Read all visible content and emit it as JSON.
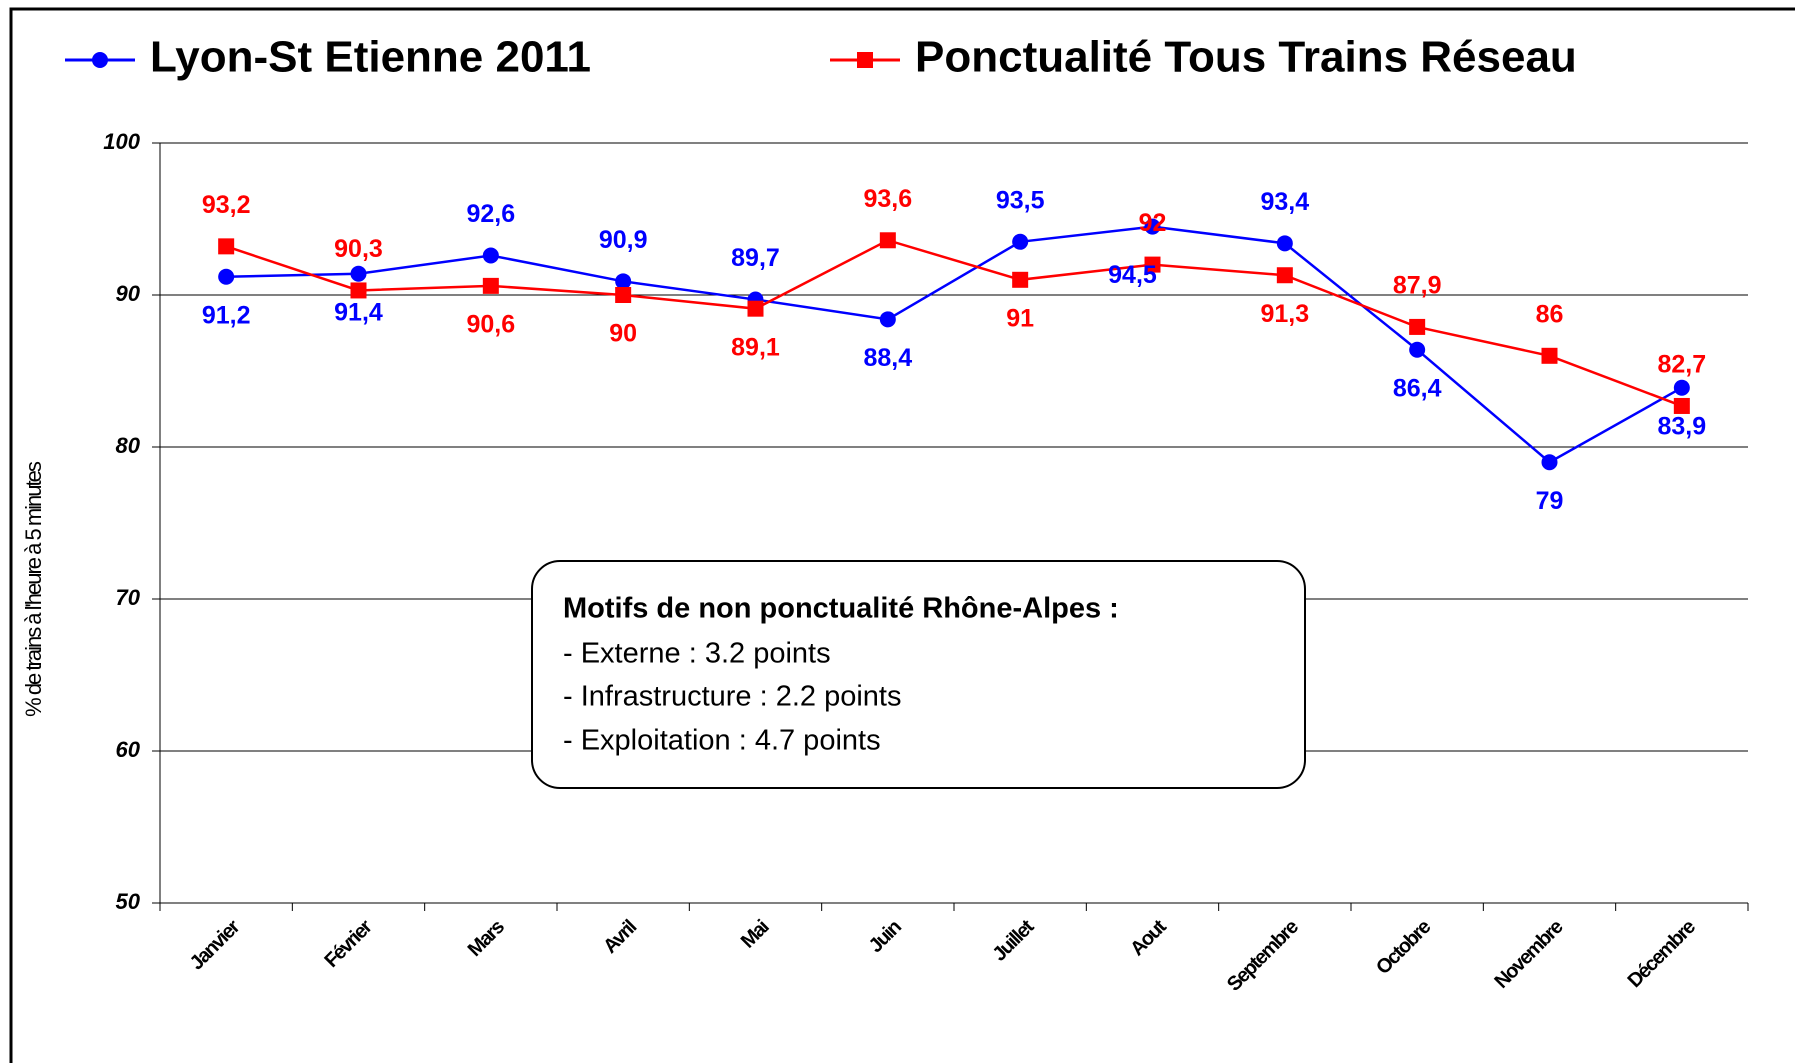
{
  "chart_data": {
    "type": "line",
    "y_label": "% de trains à l'heure à 5 minutes",
    "categories": [
      "Janvier",
      "Février",
      "Mars",
      "Avril",
      "Mai",
      "Juin",
      "Juillet",
      "Aout",
      "Septembre",
      "Octobre",
      "Novembre",
      "Décembre"
    ],
    "series": [
      {
        "name": "Lyon-St Etienne 2011",
        "color": "#0000ff",
        "marker": "circle",
        "values": [
          91.2,
          91.4,
          92.6,
          90.9,
          89.7,
          88.4,
          93.5,
          94.5,
          93.4,
          86.4,
          79,
          83.9
        ],
        "value_labels": [
          "91,2",
          "91,4",
          "92,6",
          "90,9",
          "89,7",
          "88,4",
          "93,5",
          "94,5",
          "93,4",
          "86,4",
          "79",
          "83,9"
        ]
      },
      {
        "name": "Ponctualité Tous Trains Réseau",
        "color": "#ff0000",
        "marker": "square",
        "values": [
          93.2,
          90.3,
          90.6,
          90,
          89.1,
          93.6,
          91,
          92,
          91.3,
          87.9,
          86,
          82.7
        ],
        "value_labels": [
          "93,2",
          "90,3",
          "90,6",
          "90",
          "89,1",
          "93,6",
          "91",
          "92",
          "91,3",
          "87,9",
          "86",
          "82,7"
        ]
      }
    ],
    "ylim": [
      50,
      100
    ],
    "yticks": [
      50,
      60,
      70,
      80,
      90,
      100
    ],
    "grid": true,
    "annotation": {
      "title": "Motifs de non ponctualité Rhône-Alpes :",
      "lines": [
        "- Externe : 3.2 points",
        "- Infrastructure : 2.2 points",
        "- Exploitation : 4.7 points"
      ]
    }
  }
}
